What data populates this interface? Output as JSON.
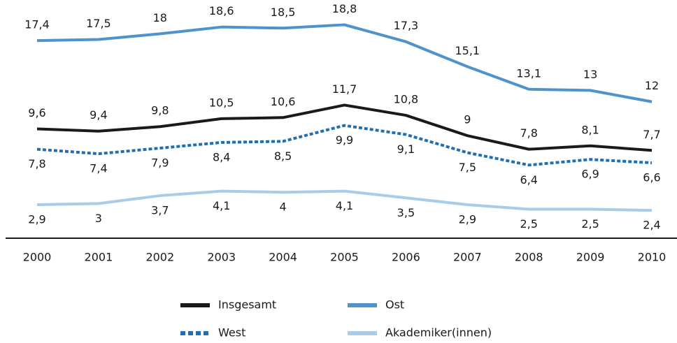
{
  "chart_data": {
    "type": "line",
    "categories": [
      "2000",
      "2001",
      "2002",
      "2003",
      "2004",
      "2005",
      "2006",
      "2007",
      "2008",
      "2009",
      "2010"
    ],
    "series": [
      {
        "name": "Insgesamt",
        "color": "#1a1a1a",
        "dashed": false,
        "label_side": "above",
        "values": [
          9.6,
          9.4,
          9.8,
          10.5,
          10.6,
          11.7,
          10.8,
          9,
          7.8,
          8.1,
          7.7
        ],
        "value_labels": [
          "9,6",
          "9,4",
          "9,8",
          "10,5",
          "10,6",
          "11,7",
          "10,8",
          "9",
          "7,8",
          "8,1",
          "7,7"
        ]
      },
      {
        "name": "Ost",
        "color": "#4f93cc",
        "dashed": false,
        "label_side": "above",
        "values": [
          17.4,
          17.5,
          18,
          18.6,
          18.5,
          18.8,
          17.3,
          15.1,
          13.1,
          13,
          12
        ],
        "value_labels": [
          "17,4",
          "17,5",
          "18",
          "18,6",
          "18,5",
          "18,8",
          "17,3",
          "15,1",
          "13,1",
          "13",
          "12"
        ]
      },
      {
        "name": "West",
        "color": "#1f6fb2",
        "dashed": true,
        "label_side": "below",
        "values": [
          7.8,
          7.4,
          7.9,
          8.4,
          8.5,
          9.9,
          9.1,
          7.5,
          6.4,
          6.9,
          6.6
        ],
        "value_labels": [
          "7,8",
          "7,4",
          "7,9",
          "8,4",
          "8,5",
          "9,9",
          "9,1",
          "7,5",
          "6,4",
          "6,9",
          "6,6"
        ]
      },
      {
        "name": "Akademiker(innen)",
        "color": "#a9cce8",
        "dashed": false,
        "label_side": "below",
        "values": [
          2.9,
          3,
          3.7,
          4.1,
          4,
          4.1,
          3.5,
          2.9,
          2.5,
          2.5,
          2.4
        ],
        "value_labels": [
          "2,9",
          "3",
          "3,7",
          "4,1",
          "4",
          "4,1",
          "3,5",
          "2,9",
          "2,5",
          "2,5",
          "2,4"
        ]
      }
    ]
  }
}
